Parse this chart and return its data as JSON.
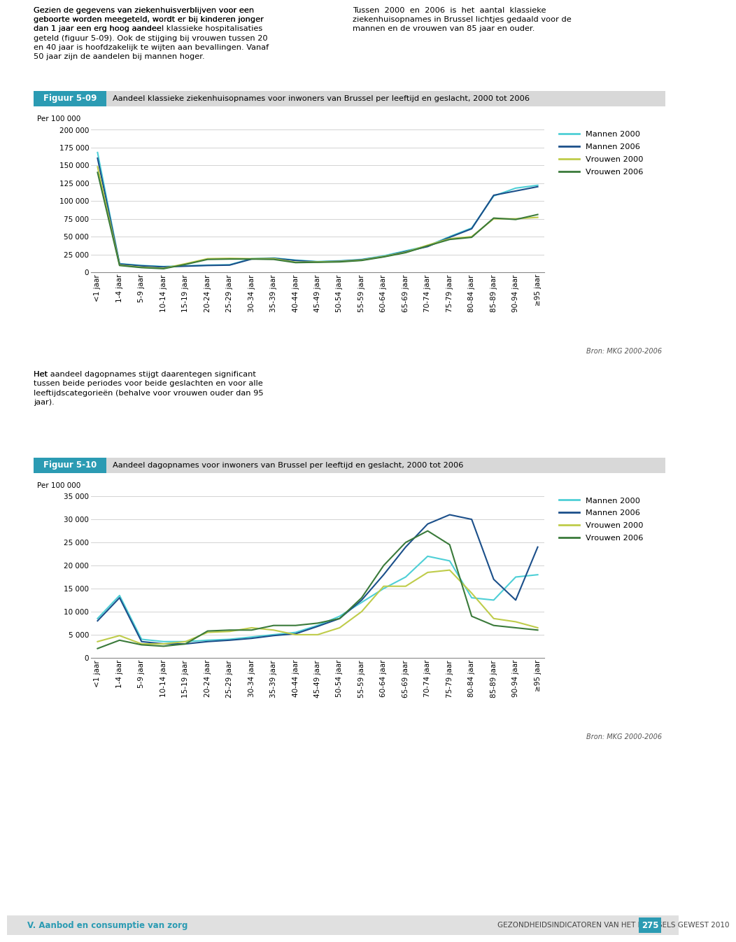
{
  "fig_title1_label": "Figuur 5-09",
  "fig_title1_text": "Aandeel klassieke ziekenhuisopnames voor inwoners van Brussel per leeftijd en geslacht, 2000 tot 2006",
  "fig_title2_label": "Figuur 5-10",
  "fig_title2_text": "Aandeel dagopnames voor inwoners van Brussel per leeftijd en geslacht, 2000 tot 2006",
  "ylabel": "Per 100 000",
  "source": "Bron: MKG 2000-2006",
  "x_labels": [
    "<1 jaar",
    "1-4 jaar",
    "5-9 jaar",
    "10-14 jaar",
    "15-19 jaar",
    "20-24 jaar",
    "25-29 jaar",
    "30-34 jaar",
    "35-39 jaar",
    "40-44 jaar",
    "45-49 jaar",
    "50-54 jaar",
    "55-59 jaar",
    "60-64 jaar",
    "65-69 jaar",
    "70-74 jaar",
    "75-79 jaar",
    "80-84 jaar",
    "85-89 jaar",
    "90-94 jaar",
    "≥95 jaar"
  ],
  "chart1": {
    "ylim": [
      0,
      200000
    ],
    "yticks": [
      0,
      25000,
      50000,
      75000,
      100000,
      125000,
      150000,
      175000,
      200000
    ],
    "series": {
      "mannen_2000": [
        168000,
        12000,
        9500,
        8000,
        9000,
        10000,
        10500,
        19000,
        20000,
        17000,
        15000,
        16000,
        18000,
        23000,
        30000,
        37000,
        50000,
        62000,
        107000,
        118000,
        122000
      ],
      "mannen_2006": [
        160000,
        11500,
        9000,
        7500,
        8500,
        9500,
        10000,
        18500,
        19500,
        16500,
        14500,
        15500,
        17500,
        22000,
        29000,
        36000,
        49000,
        61000,
        108000,
        114000,
        120000
      ],
      "vrouwen_2000": [
        148000,
        10000,
        7000,
        5500,
        12000,
        19000,
        19500,
        19000,
        19000,
        14000,
        14500,
        15000,
        17000,
        22000,
        28000,
        38000,
        47000,
        50000,
        75000,
        75000,
        77000
      ],
      "vrouwen_2006": [
        140000,
        9500,
        6500,
        5000,
        11000,
        18000,
        18500,
        18500,
        18000,
        13500,
        14000,
        14500,
        16500,
        21500,
        27500,
        37000,
        46000,
        49000,
        76000,
        74000,
        81000
      ]
    },
    "colors": {
      "mannen_2000": "#4ECFD6",
      "mannen_2006": "#1B4F8A",
      "vrouwen_2000": "#BFCC4A",
      "vrouwen_2006": "#3A7A3A"
    },
    "legend": [
      "Mannen 2000",
      "Mannen 2006",
      "Vrouwen 2000",
      "Vrouwen 2006"
    ]
  },
  "chart2": {
    "ylim": [
      0,
      35000
    ],
    "yticks": [
      0,
      5000,
      10000,
      15000,
      20000,
      25000,
      30000,
      35000
    ],
    "series": {
      "mannen_2000": [
        8500,
        13500,
        4000,
        3500,
        3500,
        3800,
        4000,
        4500,
        5000,
        5500,
        7000,
        9000,
        12000,
        15000,
        17500,
        22000,
        21000,
        13000,
        12500,
        17500,
        18000
      ],
      "mannen_2006": [
        8000,
        13000,
        3500,
        3000,
        3000,
        3500,
        3800,
        4200,
        4800,
        5200,
        6800,
        8500,
        12500,
        18000,
        24000,
        29000,
        31000,
        30000,
        17000,
        12500,
        24000
      ],
      "vrouwen_2000": [
        3500,
        4800,
        3000,
        3000,
        3500,
        5500,
        5700,
        6500,
        6000,
        5000,
        5000,
        6500,
        10000,
        15500,
        15500,
        18500,
        19000,
        14000,
        8500,
        7800,
        6500
      ],
      "vrouwen_2006": [
        2000,
        3800,
        2800,
        2500,
        3000,
        5800,
        6000,
        6000,
        7000,
        7000,
        7500,
        8500,
        13000,
        20000,
        25000,
        27500,
        24500,
        9000,
        7000,
        6500,
        6000
      ]
    },
    "colors": {
      "mannen_2000": "#4ECFD6",
      "mannen_2006": "#1B4F8A",
      "vrouwen_2000": "#BFCC4A",
      "vrouwen_2006": "#3A7A3A"
    },
    "legend": [
      "Mannen 2000",
      "Mannen 2006",
      "Vrouwen 2000",
      "Vrouwen 2006"
    ]
  },
  "text_top_left": "Gezien de gegevens van ziekenhuisverblijven voor een\ngeboorte worden meegeteld, wordt er bij kinderen jonger\ndan 1 jaar een erg hoog aandeel klassieke hospitalisaties\ngeteld (figuur 5-09). Ook de stijging bij vrouwen tussen 20\nen 40 jaar is hoofdzakelijk te wijten aan bevallingen. Vanaf\n50 jaar zijn de aandelen bij mannen hoger.",
  "text_top_left_bold": "klassieke hospitalisaties",
  "text_top_right": "Tussen  2000  en  2006  is  het  aantal  klassieke\nziekenhuisopnames in Brussel lichtjes gedaald voor de\nmannen en de vrouwen van 85 jaar en ouder.",
  "text_middle": "stijgt daarentegen significant\ntussen beide periodes voor beide geslachten en voor alle\nleeftijdscategorieën (behalve voor vrouwen ouder dan 95\njaar).",
  "text_middle_prefix": "Het ",
  "text_middle_bold": "aandeel dagopnames",
  "bottom_left": "V. Aanbod en consumptie van zorg",
  "bottom_right": "GEZONDHEIDSINDICATOREN VAN HET BRUSSELS GEWEST 2010",
  "bottom_page": "275",
  "header1_bg": "#3BA3C0",
  "header2_bg": "#D8D8D8",
  "label_bg": "#3BA3C0",
  "footer_bg": "#D8D8D8"
}
